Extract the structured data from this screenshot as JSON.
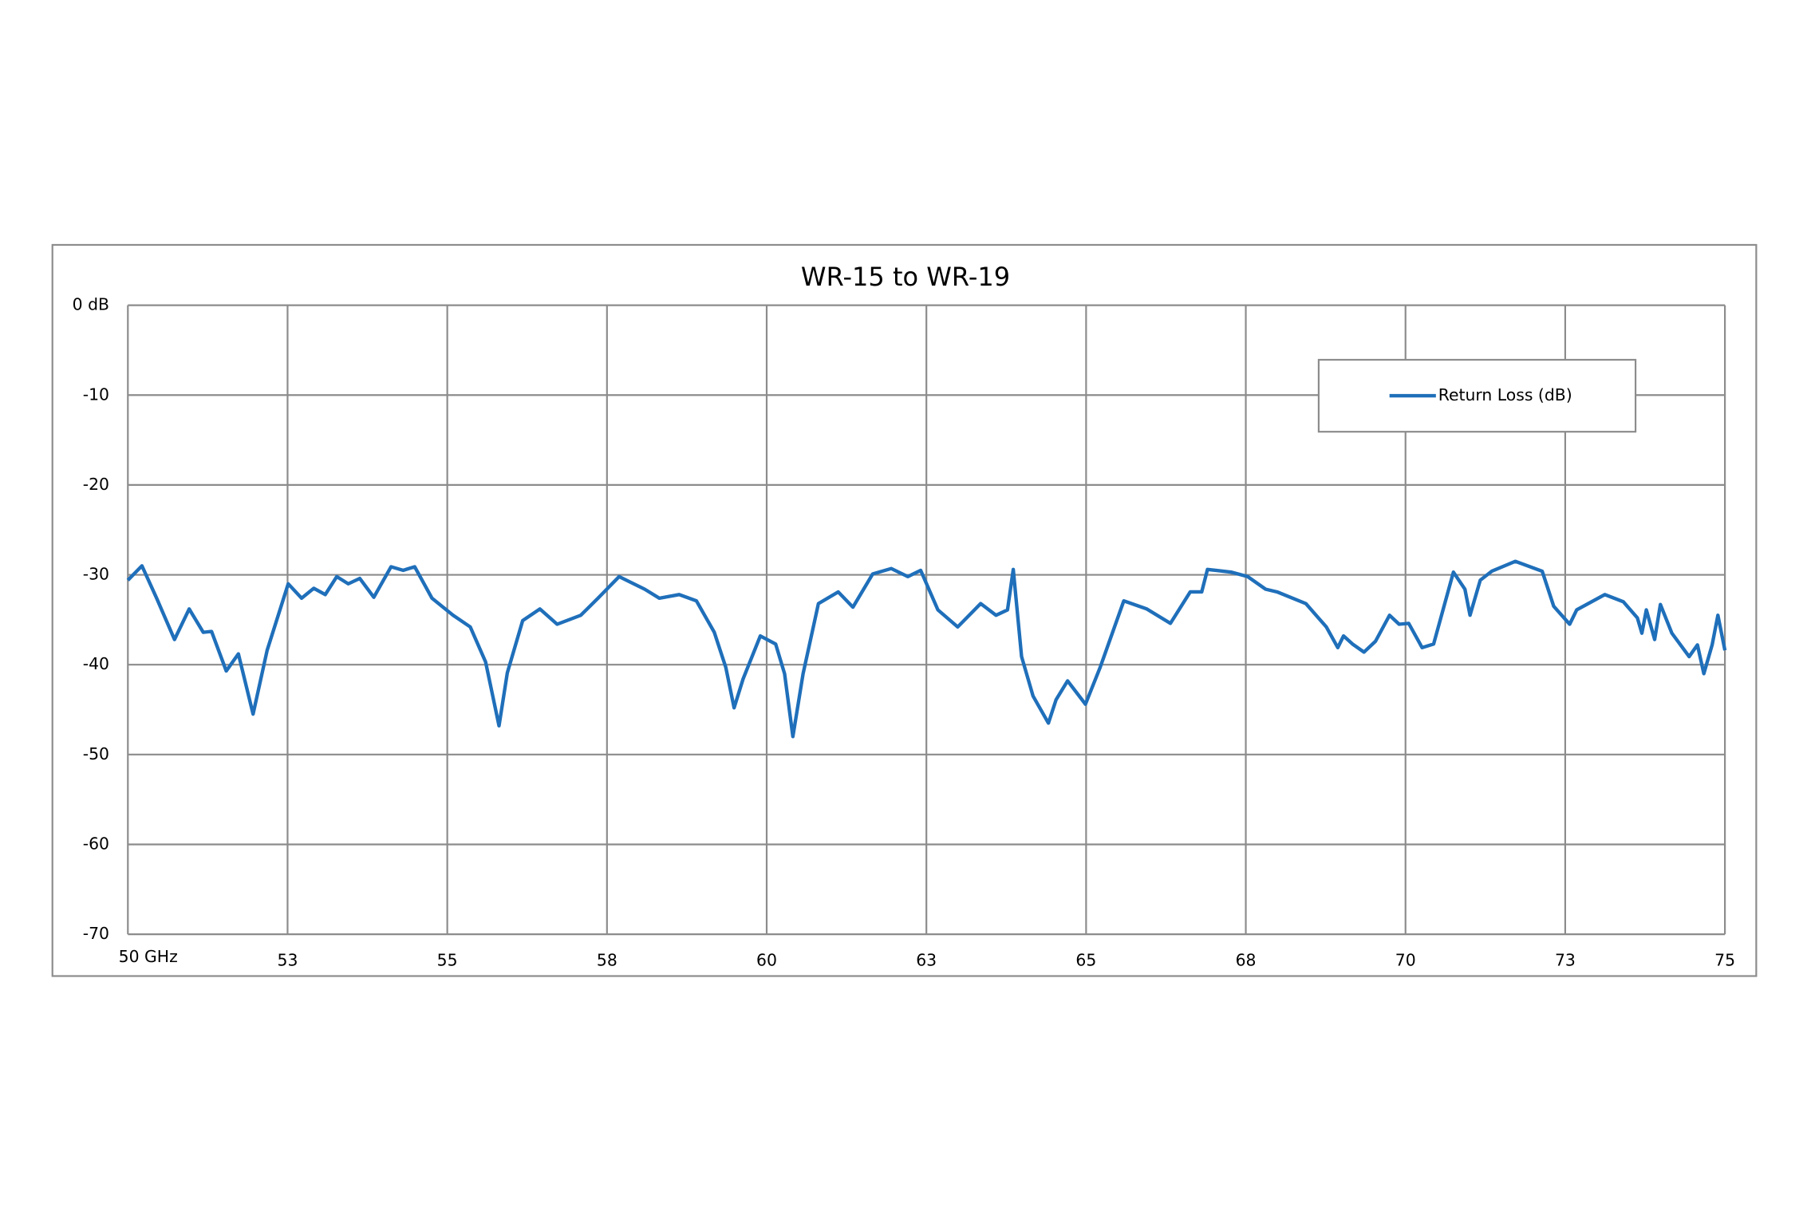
{
  "chart_data": {
    "type": "line",
    "title": "WR-15 to WR-19",
    "x": [
      50.0,
      50.22,
      50.45,
      50.73,
      50.96,
      51.18,
      51.31,
      51.54,
      51.73,
      51.96,
      52.18,
      52.51,
      52.72,
      52.91,
      53.09,
      53.27,
      53.45,
      53.63,
      53.85,
      54.12,
      54.31,
      54.49,
      54.76,
      55.09,
      55.36,
      55.6,
      55.81,
      55.94,
      56.18,
      56.45,
      56.72,
      57.09,
      57.36,
      57.69,
      58.09,
      58.32,
      58.63,
      58.9,
      59.18,
      59.36,
      59.49,
      59.63,
      59.9,
      60.14,
      60.28,
      60.41,
      60.57,
      60.81,
      61.12,
      61.35,
      61.66,
      61.95,
      62.21,
      62.41,
      62.68,
      62.99,
      63.35,
      63.59,
      63.77,
      63.86,
      63.99,
      64.17,
      64.41,
      64.53,
      64.71,
      64.99,
      65.22,
      65.59,
      65.95,
      66.32,
      66.63,
      66.81,
      66.9,
      67.27,
      67.53,
      67.81,
      67.99,
      68.44,
      68.76,
      68.94,
      69.03,
      69.17,
      69.35,
      69.53,
      69.75,
      69.9,
      70.05,
      70.26,
      70.44,
      70.75,
      70.93,
      71.01,
      71.17,
      71.35,
      71.72,
      72.14,
      72.32,
      72.57,
      72.68,
      73.12,
      73.41,
      73.63,
      73.7,
      73.77,
      73.9,
      73.99,
      74.17,
      74.44,
      74.57,
      74.67,
      74.8,
      74.89,
      75.0
    ],
    "series": [
      {
        "name": "Return Loss (dB)",
        "color": "#1f6fba",
        "values": [
          -30.6,
          -29,
          -32.6,
          -37.2,
          -33.8,
          -36.4,
          -36.3,
          -40.7,
          -38.8,
          -45.5,
          -38.4,
          -31,
          -32.6,
          -31.5,
          -32.2,
          -30.2,
          -31,
          -30.4,
          -32.5,
          -29.1,
          -29.5,
          -29.1,
          -32.6,
          -34.5,
          -35.8,
          -39.7,
          -46.8,
          -40.9,
          -35.1,
          -33.8,
          -35.5,
          -34.5,
          -32.6,
          -30.2,
          -31.6,
          -32.6,
          -32.2,
          -32.9,
          -36.4,
          -40.3,
          -44.8,
          -41.6,
          -36.8,
          -37.7,
          -41,
          -48,
          -41,
          -33.2,
          -31.9,
          -33.6,
          -29.9,
          -29.3,
          -30.2,
          -29.5,
          -33.9,
          -35.8,
          -33.2,
          -34.5,
          -33.9,
          -29.4,
          -39.1,
          -43.5,
          -46.5,
          -43.9,
          -41.8,
          -44.4,
          -40.3,
          -32.9,
          -33.8,
          -35.4,
          -31.9,
          -31.9,
          -29.4,
          -29.7,
          -30.2,
          -31.6,
          -31.9,
          -33.2,
          -35.8,
          -38.1,
          -36.8,
          -37.7,
          -38.6,
          -37.4,
          -34.5,
          -35.5,
          -35.4,
          -38.1,
          -37.7,
          -29.7,
          -31.6,
          -34.5,
          -30.6,
          -29.6,
          -28.5,
          -29.6,
          -33.5,
          -35.5,
          -33.9,
          -32.2,
          -33,
          -34.8,
          -36.5,
          -33.9,
          -37.2,
          -33.3,
          -36.5,
          -39.1,
          -37.8,
          -41,
          -37.8,
          -34.5,
          -38.4
        ]
      }
    ],
    "xlim": [
      50,
      75
    ],
    "xticks": [
      {
        "value": 50,
        "label": "50 GHz"
      },
      {
        "value": 52.5,
        "label": "53"
      },
      55,
      {
        "value": 57.5,
        "label": "58"
      },
      60,
      {
        "value": 62.5,
        "label": "63"
      },
      65,
      {
        "value": 67.5,
        "label": "68"
      },
      70,
      {
        "value": 72.5,
        "label": "73"
      },
      75
    ],
    "ylim": [
      -70,
      0
    ],
    "yticks": [
      {
        "value": 0,
        "label": "0 dB"
      },
      -10,
      -20,
      -30,
      -40,
      -50,
      -60,
      -70
    ],
    "grid": true,
    "legend": "upper right"
  }
}
